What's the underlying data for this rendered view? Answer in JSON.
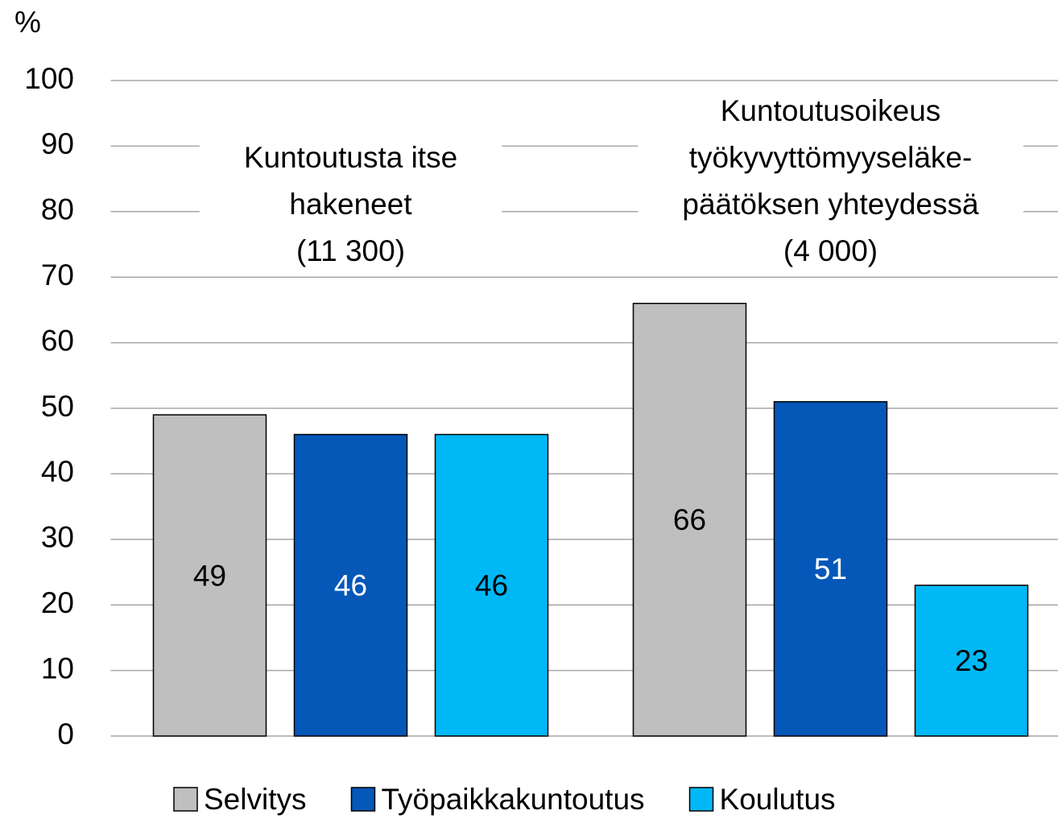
{
  "chart_data": {
    "type": "bar",
    "y_axis_label": "%",
    "categories": [
      [
        "Kuntoutusta itse",
        "hakeneet",
        "(11 300)"
      ],
      [
        "Kuntoutusoikeus",
        "työkyvyttömyyseläke-",
        "päätöksen yhteydessä",
        "(4 000)"
      ]
    ],
    "series": [
      {
        "name": "Selvitys",
        "color": "#bfbfbf",
        "label_color": "#000000",
        "values": [
          49,
          66
        ]
      },
      {
        "name": "Työpaikkakuntoutus",
        "color": "#0558b8",
        "label_color": "#ffffff",
        "values": [
          46,
          51
        ]
      },
      {
        "name": "Koulutus",
        "color": "#00b8f5",
        "label_color": "#000000",
        "values": [
          46,
          23
        ]
      }
    ],
    "ylim": [
      0,
      100
    ],
    "yticks": [
      0,
      10,
      20,
      30,
      40,
      50,
      60,
      70,
      80,
      90,
      100
    ],
    "grid": true,
    "legend": "bottom"
  }
}
